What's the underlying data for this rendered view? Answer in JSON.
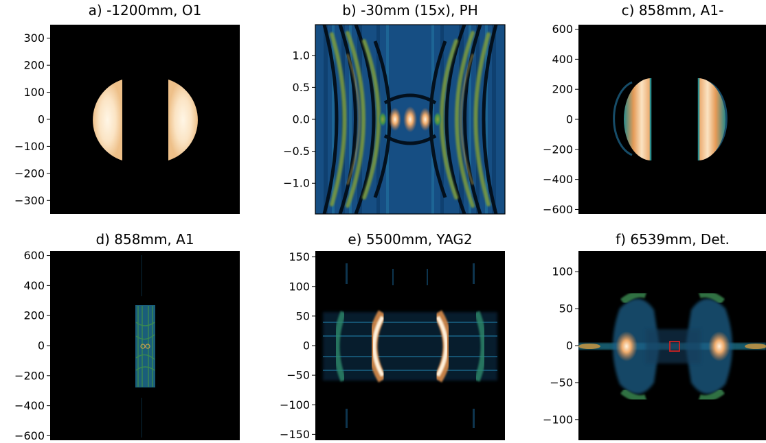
{
  "chart_data": [
    {
      "type": "heatmap",
      "title": "a) -1200mm, O1",
      "colormap": "gist_earth",
      "yticks": [
        "300",
        "200",
        "100",
        "0",
        "−100",
        "−200",
        "−300"
      ],
      "ytick_values": [
        300,
        200,
        100,
        0,
        -100,
        -200,
        -300
      ],
      "ylim": [
        -350,
        350
      ]
    },
    {
      "type": "heatmap",
      "title": "b) -30mm (15x), PH",
      "colormap": "gist_earth",
      "yticks": [
        "1.0",
        "0.5",
        "0.0",
        "−0.5",
        "−1.0"
      ],
      "ytick_values": [
        1.0,
        0.5,
        0.0,
        -0.5,
        -1.0
      ],
      "ylim": [
        -1.48,
        1.48
      ]
    },
    {
      "type": "heatmap",
      "title": "c) 858mm, A1-",
      "colormap": "gist_earth",
      "yticks": [
        "600",
        "400",
        "200",
        "0",
        "−200",
        "−400",
        "−600"
      ],
      "ytick_values": [
        600,
        400,
        200,
        0,
        -200,
        -400,
        -600
      ],
      "ylim": [
        -630,
        630
      ]
    },
    {
      "type": "heatmap",
      "title": "d) 858mm, A1",
      "colormap": "gist_earth",
      "yticks": [
        "600",
        "400",
        "200",
        "0",
        "−200",
        "−400",
        "−600"
      ],
      "ytick_values": [
        600,
        400,
        200,
        0,
        -200,
        -400,
        -600
      ],
      "ylim": [
        -630,
        630
      ]
    },
    {
      "type": "heatmap",
      "title": "e) 5500mm, YAG2",
      "colormap": "gist_earth",
      "yticks": [
        "150",
        "100",
        "50",
        "0",
        "−50",
        "−100",
        "−150"
      ],
      "ytick_values": [
        150,
        100,
        50,
        0,
        -50,
        -100,
        -150
      ],
      "ylim": [
        -160,
        160
      ]
    },
    {
      "type": "heatmap",
      "title": "f) 6539mm, Det.",
      "colormap": "gist_earth",
      "yticks": [
        "100",
        "50",
        "0",
        "−50",
        "−100"
      ],
      "ytick_values": [
        100,
        50,
        0,
        -50,
        -100
      ],
      "ylim": [
        -128,
        128
      ],
      "highlight_box_color": "#cc2222"
    }
  ]
}
